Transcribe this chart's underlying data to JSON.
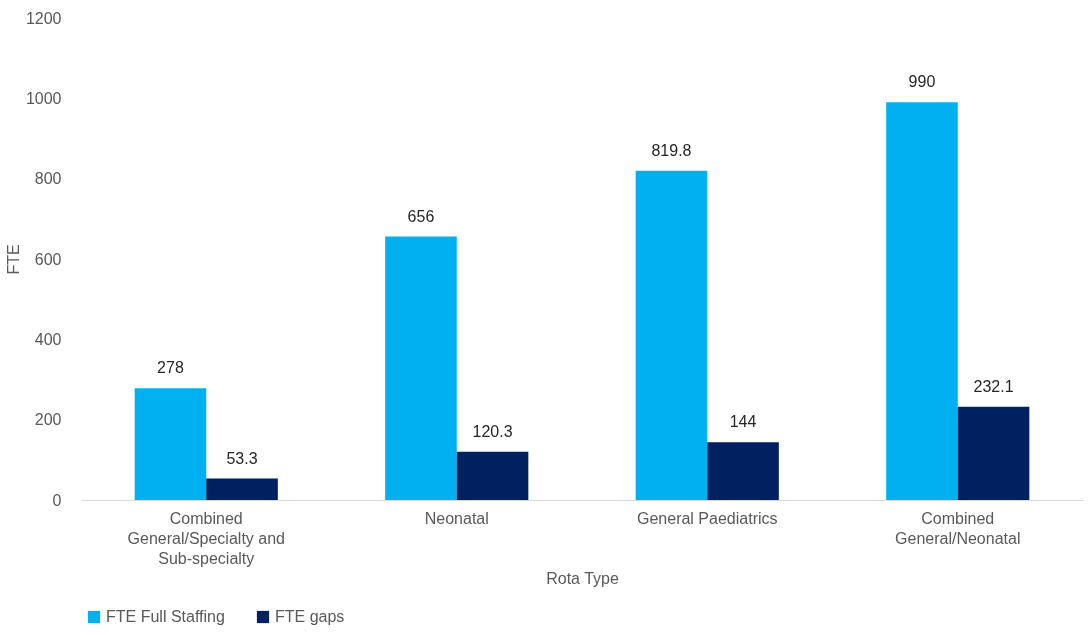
{
  "chart_data": {
    "type": "bar",
    "xlabel": "Rota Type",
    "ylabel": "FTE",
    "categories": [
      "Combined General/Specialty and Sub-specialty",
      "Neonatal",
      "General Paediatrics",
      "Combined General/Neonatal"
    ],
    "series": [
      {
        "name": "FTE Full Staffing",
        "color": "#00b0f0",
        "values": [
          278,
          656,
          819.8,
          990
        ]
      },
      {
        "name": "FTE gaps",
        "color": "#002060",
        "values": [
          53.3,
          120.3,
          144,
          232.1
        ]
      }
    ],
    "ylim": [
      0,
      1200
    ],
    "yticks": [
      0,
      200,
      400,
      600,
      800,
      1000,
      1200
    ],
    "grid": false,
    "legend": "bottom",
    "data_labels": true
  }
}
